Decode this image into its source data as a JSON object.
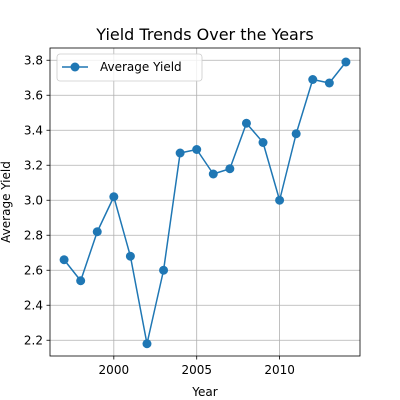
{
  "chart_data": {
    "type": "line",
    "title": "Yield Trends Over the Years",
    "xlabel": "Year",
    "ylabel": "Average Yield",
    "xlim": [
      1996.15,
      2014.85
    ],
    "ylim": [
      2.11,
      3.87
    ],
    "xticks": [
      2000,
      2005,
      2010
    ],
    "yticks": [
      2.2,
      2.4,
      2.6,
      2.8,
      3.0,
      3.2,
      3.4,
      3.6,
      3.8
    ],
    "ytick_labels": [
      "2.2",
      "2.4",
      "2.6",
      "2.8",
      "3.0",
      "3.2",
      "3.4",
      "3.6",
      "3.8"
    ],
    "grid": true,
    "legend": "upper-left",
    "series": [
      {
        "name": "Average Yield",
        "color": "#1f77b4",
        "marker": "circle",
        "x": [
          1997,
          1998,
          1999,
          2000,
          2001,
          2002,
          2003,
          2004,
          2005,
          2006,
          2007,
          2008,
          2009,
          2010,
          2011,
          2012,
          2013,
          2014
        ],
        "y": [
          2.66,
          2.54,
          2.82,
          3.02,
          2.68,
          2.18,
          2.6,
          3.27,
          3.29,
          3.15,
          3.18,
          3.44,
          3.33,
          3.0,
          3.38,
          3.69,
          3.67,
          3.79
        ]
      }
    ]
  }
}
